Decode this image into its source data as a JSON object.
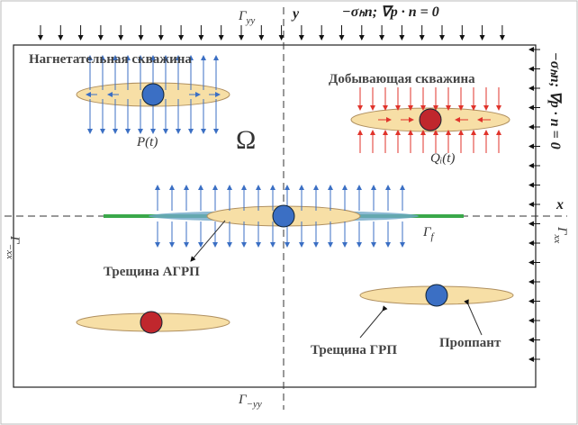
{
  "axes": {
    "y": "y",
    "x": "x"
  },
  "boundaries": {
    "top": {
      "base": "Γ",
      "sub": "yy"
    },
    "bottom": {
      "base": "Γ",
      "sub": "−yy"
    },
    "left": {
      "base": "Γ",
      "sub": "−xx"
    },
    "right": {
      "base": "Γ",
      "sub": "xx"
    },
    "fracture": {
      "base": "Γ",
      "sub": "f"
    }
  },
  "conditions": {
    "top": "−σₕn; ∇p · n = 0",
    "right": "−σₕn; ∇p · n = 0"
  },
  "domain": "Ω",
  "labels": {
    "injection_well": "Нагнетательная скважина",
    "production_well": "Добывающая скважина",
    "pressure": "P(t)",
    "rate": "Qᵢ(t)",
    "agrp_fracture": "Трещина АГРП",
    "grp_fracture": "Трещина ГРП",
    "proppant": "Проппант"
  }
}
